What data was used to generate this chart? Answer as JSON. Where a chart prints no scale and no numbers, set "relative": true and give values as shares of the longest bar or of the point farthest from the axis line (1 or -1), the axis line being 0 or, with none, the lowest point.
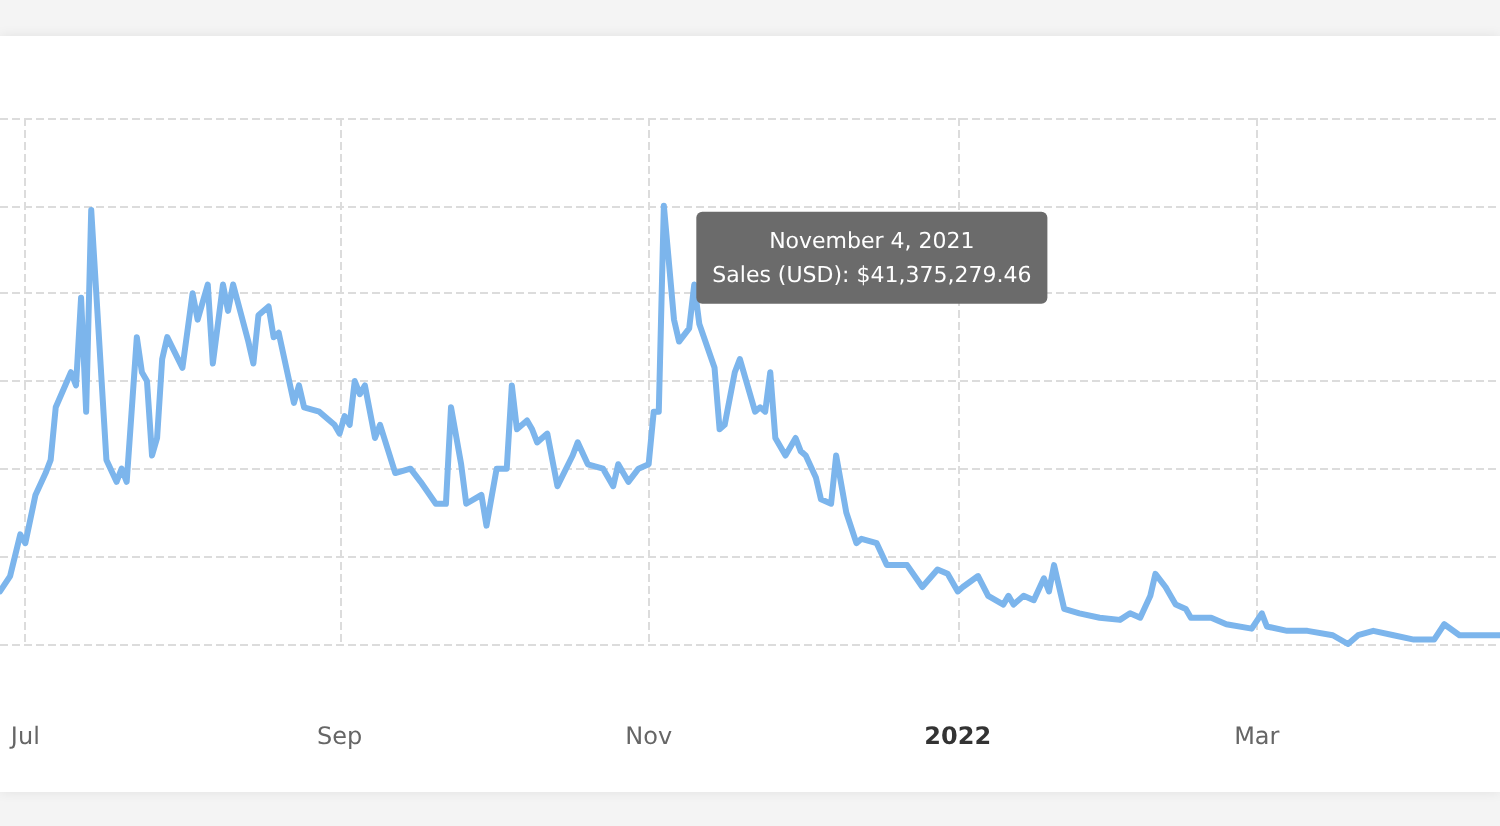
{
  "chart_data": {
    "type": "line",
    "relative": true,
    "grid": true,
    "marker": "none",
    "line_style": "solid",
    "xlim": [
      "2021-06-26",
      "2022-04-18"
    ],
    "xticks": [
      {
        "value": "2021-07-01",
        "label": "Jul"
      },
      {
        "value": "2021-09-01",
        "label": "Sep"
      },
      {
        "value": "2021-11-01",
        "label": "Nov"
      },
      {
        "value": "2022-01-01",
        "label": "2022"
      },
      {
        "value": "2022-03-01",
        "label": "Mar"
      }
    ],
    "annotations": [
      {
        "text": "November 4, 2021\nSales (USD): $41,375,279.46",
        "x": "2021-11-04",
        "y": 1
      }
    ],
    "series": [
      {
        "color": "#7cb5ec",
        "x": [
          "2021-06-26",
          "2021-06-28",
          "2021-06-30",
          "2021-07-01",
          "2021-07-03",
          "2021-07-05",
          "2021-07-06",
          "2021-07-07",
          "2021-07-10",
          "2021-07-11",
          "2021-07-12",
          "2021-07-13",
          "2021-07-14",
          "2021-07-17",
          "2021-07-19",
          "2021-07-20",
          "2021-07-21",
          "2021-07-23",
          "2021-07-24",
          "2021-07-25",
          "2021-07-26",
          "2021-07-27",
          "2021-07-28",
          "2021-07-29",
          "2021-08-01",
          "2021-08-03",
          "2021-08-04",
          "2021-08-06",
          "2021-08-07",
          "2021-08-09",
          "2021-08-10",
          "2021-08-11",
          "2021-08-14",
          "2021-08-15",
          "2021-08-16",
          "2021-08-18",
          "2021-08-19",
          "2021-08-20",
          "2021-08-23",
          "2021-08-24",
          "2021-08-25",
          "2021-08-28",
          "2021-08-31",
          "2021-09-01",
          "2021-09-02",
          "2021-09-03",
          "2021-09-04",
          "2021-09-05",
          "2021-09-06",
          "2021-09-08",
          "2021-09-09",
          "2021-09-12",
          "2021-09-15",
          "2021-09-17",
          "2021-09-20",
          "2021-09-22",
          "2021-09-23",
          "2021-09-25",
          "2021-09-26",
          "2021-09-29",
          "2021-09-30",
          "2021-10-02",
          "2021-10-04",
          "2021-10-05",
          "2021-10-06",
          "2021-10-08",
          "2021-10-09",
          "2021-10-10",
          "2021-10-12",
          "2021-10-14",
          "2021-10-17",
          "2021-10-18",
          "2021-10-20",
          "2021-10-23",
          "2021-10-25",
          "2021-10-26",
          "2021-10-28",
          "2021-10-30",
          "2021-11-01",
          "2021-11-02",
          "2021-11-03",
          "2021-11-04",
          "2021-11-06",
          "2021-11-07",
          "2021-11-09",
          "2021-11-10",
          "2021-11-11",
          "2021-11-14",
          "2021-11-15",
          "2021-11-16",
          "2021-11-18",
          "2021-11-19",
          "2021-11-22",
          "2021-11-23",
          "2021-11-24",
          "2021-11-25",
          "2021-11-26",
          "2021-11-28",
          "2021-11-30",
          "2021-12-01",
          "2021-12-02",
          "2021-12-04",
          "2021-12-05",
          "2021-12-07",
          "2021-12-08",
          "2021-12-10",
          "2021-12-12",
          "2021-12-13",
          "2021-12-16",
          "2021-12-18",
          "2021-12-22",
          "2021-12-25",
          "2021-12-28",
          "2021-12-30",
          "2022-01-01",
          "2022-01-02",
          "2022-01-05",
          "2022-01-07",
          "2022-01-10",
          "2022-01-11",
          "2022-01-12",
          "2022-01-14",
          "2022-01-16",
          "2022-01-18",
          "2022-01-19",
          "2022-01-20",
          "2022-01-22",
          "2022-01-25",
          "2022-01-29",
          "2022-02-02",
          "2022-02-04",
          "2022-02-06",
          "2022-02-08",
          "2022-02-09",
          "2022-02-11",
          "2022-02-13",
          "2022-02-15",
          "2022-02-16",
          "2022-02-20",
          "2022-02-23",
          "2022-02-28",
          "2022-03-02",
          "2022-03-03",
          "2022-03-07",
          "2022-03-11",
          "2022-03-16",
          "2022-03-19",
          "2022-03-21",
          "2022-03-24",
          "2022-03-28",
          "2022-04-01",
          "2022-04-05",
          "2022-04-07",
          "2022-04-10",
          "2022-04-14",
          "2022-04-18"
        ],
        "values": [
          0.12,
          0.155,
          0.25,
          0.23,
          0.34,
          0.39,
          0.42,
          0.54,
          0.62,
          0.59,
          0.79,
          0.53,
          0.99,
          0.42,
          0.37,
          0.4,
          0.37,
          0.7,
          0.62,
          0.6,
          0.43,
          0.47,
          0.65,
          0.7,
          0.63,
          0.8,
          0.74,
          0.82,
          0.64,
          0.82,
          0.76,
          0.82,
          0.69,
          0.64,
          0.75,
          0.77,
          0.7,
          0.71,
          0.55,
          0.59,
          0.54,
          0.53,
          0.5,
          0.48,
          0.52,
          0.5,
          0.6,
          0.57,
          0.59,
          0.47,
          0.5,
          0.39,
          0.4,
          0.37,
          0.32,
          0.32,
          0.54,
          0.41,
          0.32,
          0.34,
          0.27,
          0.4,
          0.4,
          0.59,
          0.49,
          0.51,
          0.49,
          0.46,
          0.48,
          0.36,
          0.43,
          0.46,
          0.41,
          0.4,
          0.36,
          0.41,
          0.37,
          0.4,
          0.41,
          0.53,
          0.53,
          1,
          0.74,
          0.69,
          0.72,
          0.82,
          0.73,
          0.63,
          0.49,
          0.5,
          0.62,
          0.65,
          0.53,
          0.54,
          0.53,
          0.62,
          0.47,
          0.43,
          0.47,
          0.44,
          0.43,
          0.38,
          0.33,
          0.32,
          0.43,
          0.3,
          0.23,
          0.24,
          0.23,
          0.18,
          0.18,
          0.13,
          0.17,
          0.16,
          0.12,
          0.13,
          0.155,
          0.11,
          0.09,
          0.11,
          0.09,
          0.11,
          0.1,
          0.15,
          0.12,
          0.18,
          0.08,
          0.07,
          0.06,
          0.055,
          0.07,
          0.06,
          0.11,
          0.16,
          0.13,
          0.09,
          0.08,
          0.06,
          0.06,
          0.045,
          0.035,
          0.07,
          0.04,
          0.03,
          0.03,
          0.02,
          0,
          0.02,
          0.03,
          0.02,
          0.01,
          0.01,
          0.045,
          0.02,
          0.02,
          0.02
        ]
      }
    ]
  }
}
